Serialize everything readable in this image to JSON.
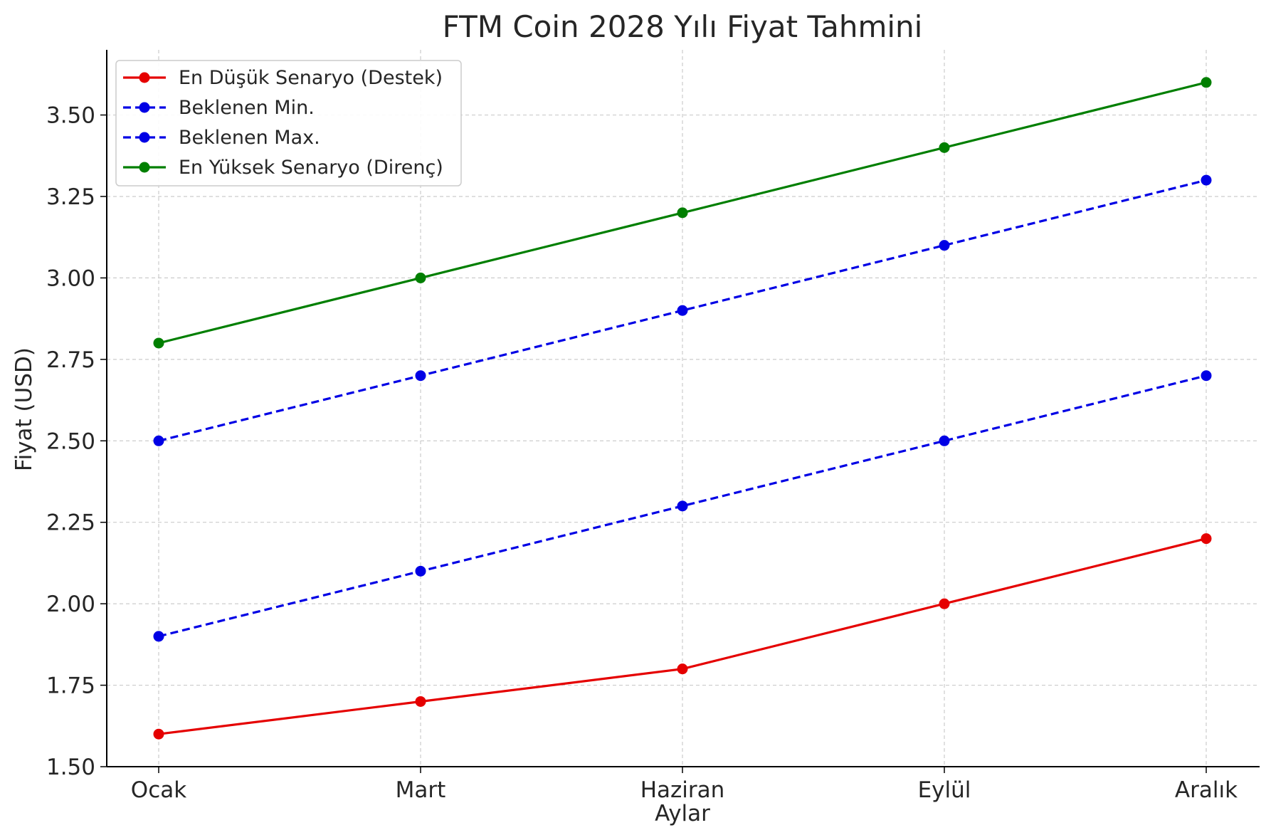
{
  "chart_data": {
    "type": "line",
    "title": "FTM Coin 2028 Yılı Fiyat Tahmini",
    "xlabel": "Aylar",
    "ylabel": "Fiyat (USD)",
    "categories": [
      "Ocak",
      "Mart",
      "Haziran",
      "Eylül",
      "Aralık"
    ],
    "ylim": [
      1.5,
      3.7
    ],
    "yticks": [
      1.5,
      1.75,
      2.0,
      2.25,
      2.5,
      2.75,
      3.0,
      3.25,
      3.5
    ],
    "ytick_labels": [
      "1.50",
      "1.75",
      "2.00",
      "2.25",
      "2.50",
      "2.75",
      "3.00",
      "3.25",
      "3.50"
    ],
    "grid": true,
    "legend_position": "top-left",
    "series": [
      {
        "name": "En Düşük Senaryo (Destek)",
        "color": "#e50000",
        "style": "solid",
        "marker": "circle",
        "values": [
          1.6,
          1.7,
          1.8,
          2.0,
          2.2
        ]
      },
      {
        "name": "Beklenen Min.",
        "color": "#0000e5",
        "style": "dashed",
        "marker": "circle",
        "values": [
          1.9,
          2.1,
          2.3,
          2.5,
          2.7
        ]
      },
      {
        "name": "Beklenen Max.",
        "color": "#0000e5",
        "style": "dashed",
        "marker": "circle",
        "values": [
          2.5,
          2.7,
          2.9,
          3.1,
          3.3
        ]
      },
      {
        "name": "En Yüksek Senaryo (Direnç)",
        "color": "#007f00",
        "style": "solid",
        "marker": "circle",
        "values": [
          2.8,
          3.0,
          3.2,
          3.4,
          3.6
        ]
      }
    ]
  }
}
